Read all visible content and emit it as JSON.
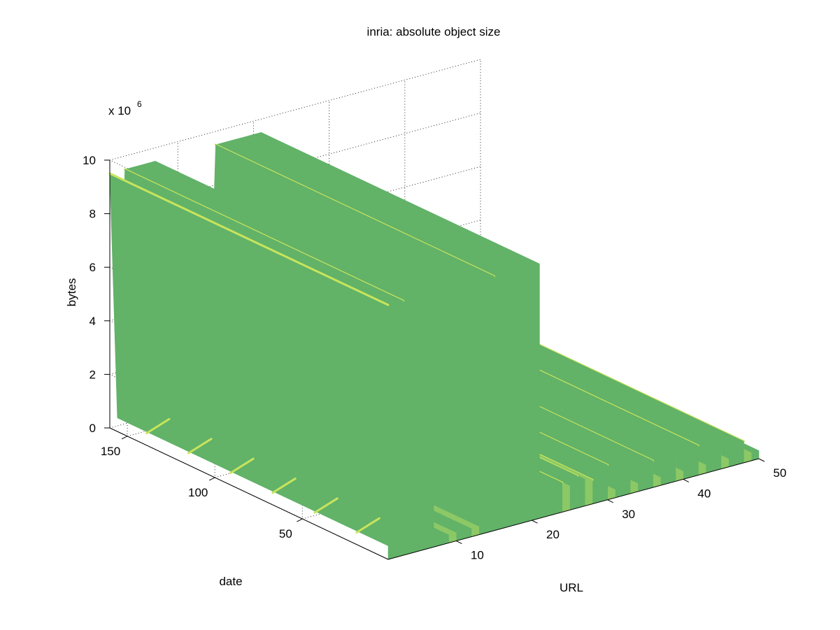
{
  "chart_data": {
    "type": "surface",
    "title": "inria: absolute object size",
    "xlabel": "URL",
    "ylabel": "date",
    "zlabel": "bytes",
    "z_exponent_label": "x 10",
    "z_exponent": "6",
    "xlim": [
      1,
      50
    ],
    "ylim": [
      1,
      160
    ],
    "zlim": [
      0,
      10000000
    ],
    "xticks": [
      10,
      20,
      30,
      40,
      50
    ],
    "yticks": [
      50,
      100,
      150
    ],
    "zticks": [
      0,
      2,
      4,
      6,
      8,
      10
    ],
    "grid": true,
    "colormap": "summer",
    "colors": {
      "base": "#62b268",
      "light": "#c7e45c",
      "mid": "#8cc865",
      "dark": "#4e9a58"
    },
    "tall_urls": [
      1,
      3,
      4,
      5,
      6,
      7,
      15,
      16,
      17,
      18,
      19,
      20,
      21
    ],
    "tall_value": 9500000,
    "ridge_urls": [
      23,
      24,
      25,
      26,
      27,
      28,
      30,
      33,
      36,
      39,
      42,
      45,
      48
    ],
    "ridge_values": [
      1000000,
      1100000,
      900000,
      1200000,
      1000000,
      900000,
      1300000,
      1100000,
      1000000,
      900000,
      1100000,
      1000000,
      800000
    ],
    "low_value": 300000
  }
}
